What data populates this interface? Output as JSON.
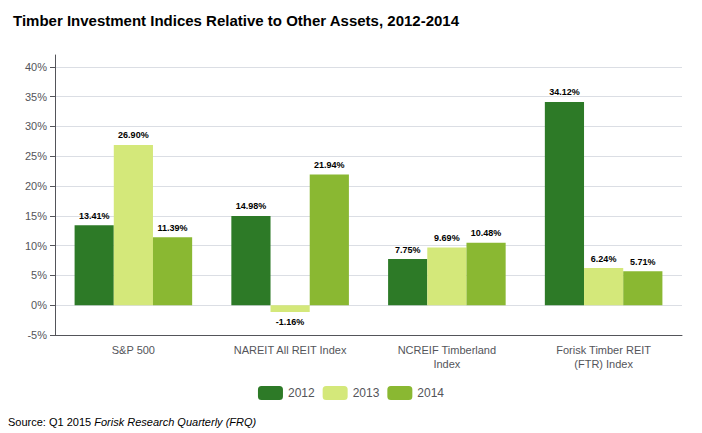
{
  "chart_data": {
    "type": "bar",
    "title": "Timber Investment Indices Relative to Other Assets, 2012-2014",
    "categories": [
      "S&P 500",
      "NAREIT All REIT Index",
      "NCREIF Timberland\nIndex",
      "Forisk Timber REIT\n(FTR) Index"
    ],
    "series": [
      {
        "name": "2012",
        "color": "#2d7a27",
        "values": [
          13.41,
          14.98,
          7.75,
          34.12
        ],
        "value_labels": [
          "13.41%",
          "14.98%",
          "7.75%",
          "34.12%"
        ]
      },
      {
        "name": "2013",
        "color": "#d4e87a",
        "values": [
          26.9,
          -1.16,
          9.69,
          6.24
        ],
        "value_labels": [
          "26.90%",
          "-1.16%",
          "9.69%",
          "6.24%"
        ]
      },
      {
        "name": "2014",
        "color": "#8ab832",
        "values": [
          11.39,
          21.94,
          10.48,
          5.71
        ],
        "value_labels": [
          "11.39%",
          "21.94%",
          "10.48%",
          "5.71%"
        ]
      }
    ],
    "ylim": [
      -5,
      42
    ],
    "yticks": [
      {
        "value": -5,
        "label": "-5%"
      },
      {
        "value": 0,
        "label": "0%"
      },
      {
        "value": 5,
        "label": "5%"
      },
      {
        "value": 10,
        "label": "10%"
      },
      {
        "value": 15,
        "label": "15%"
      },
      {
        "value": 20,
        "label": "20%"
      },
      {
        "value": 25,
        "label": "25%"
      },
      {
        "value": 30,
        "label": "30%"
      },
      {
        "value": 35,
        "label": "35%"
      },
      {
        "value": 40,
        "label": "40%"
      }
    ],
    "grid": true,
    "legend": "bottom",
    "data_labels": true,
    "annotations": [
      "Source: Q1 2015 ",
      "Forisk Research Quarterly (FRQ)"
    ]
  }
}
